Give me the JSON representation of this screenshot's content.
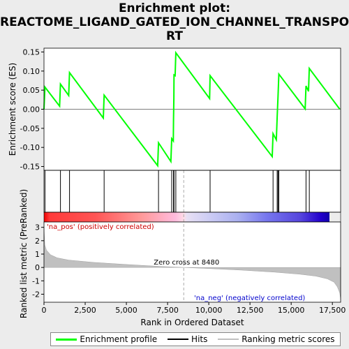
{
  "title_lines": [
    "Enrichment plot:",
    "REACTOME_LIGAND_GATED_ION_CHANNEL_TRANSPO",
    "RT"
  ],
  "colors": {
    "enrichment_line": "#00ff00",
    "hits": "#000000",
    "metric_fill": "#c0c0c0",
    "zero_cross_line": "#c0c0c0",
    "pos_label": "#cc0000",
    "neg_label": "#0000cc"
  },
  "legend": {
    "enrichment_profile": "Enrichment profile",
    "hits": "Hits",
    "ranking_metric": "Ranking metric scores"
  },
  "chart_data": {
    "type": "line",
    "top_panel": {
      "ylabel": "Enrichment score (ES)",
      "ylim": [
        -0.16,
        0.16
      ],
      "yticks": [
        -0.15,
        -0.1,
        -0.05,
        0.0,
        0.05,
        0.1,
        0.15
      ],
      "ytick_labels": [
        "-0.15",
        "-0.10",
        "-0.05",
        "0.00",
        "0.05",
        "0.10",
        "0.15"
      ],
      "series_x": [
        0,
        60,
        950,
        1000,
        1500,
        1550,
        3600,
        3650,
        6900,
        6950,
        7700,
        7750,
        7850,
        7860,
        7880,
        7890,
        7960,
        8000,
        10050,
        10080,
        13850,
        13900,
        14100,
        14150,
        14200,
        14250,
        15850,
        15900,
        16050,
        16100,
        17950
      ],
      "series_y": [
        0.0,
        0.058,
        0.008,
        0.066,
        0.036,
        0.096,
        -0.023,
        0.037,
        -0.148,
        -0.088,
        -0.137,
        -0.077,
        -0.083,
        -0.027,
        0.03,
        0.09,
        0.088,
        0.148,
        0.028,
        0.088,
        -0.124,
        -0.064,
        -0.08,
        -0.02,
        0.033,
        0.092,
        0.001,
        0.061,
        0.047,
        0.107,
        0.0
      ]
    },
    "hits_panel": {
      "hits": [
        60,
        1000,
        1550,
        3650,
        6950,
        7750,
        7860,
        7890,
        8000,
        10080,
        13900,
        14150,
        14200,
        14250,
        15900,
        16100
      ]
    },
    "bottom_panel": {
      "ylabel": "Ranked list metric (PreRanked)",
      "xlabel": "Rank in Ordered Dataset",
      "ylim": [
        -2.6,
        3.4
      ],
      "yticks": [
        -2,
        -1,
        0,
        1,
        2,
        3
      ],
      "ytick_labels": [
        "-2",
        "-1",
        "0",
        "1",
        "2",
        "3"
      ],
      "metric_x": [
        0,
        50,
        150,
        400,
        800,
        1500,
        3000,
        5000,
        7000,
        8480,
        10000,
        12000,
        14000,
        15500,
        16500,
        17200,
        17600,
        17800,
        17950,
        18000
      ],
      "metric_y": [
        3.0,
        1.7,
        1.3,
        0.95,
        0.72,
        0.55,
        0.38,
        0.22,
        0.08,
        0.0,
        -0.08,
        -0.2,
        -0.35,
        -0.5,
        -0.65,
        -0.85,
        -1.1,
        -1.45,
        -1.9,
        -2.4
      ],
      "zero_cross_label": "Zero cross at 8480",
      "zero_cross_x": 8480,
      "pos_label": "'na_pos' (positively correlated)",
      "neg_label": "'na_neg' (negatively correlated)"
    },
    "xlim": [
      0,
      18000
    ],
    "xticks": [
      0,
      2500,
      5000,
      7500,
      10000,
      12500,
      15000,
      17500
    ],
    "xtick_labels": [
      "0",
      "2,500",
      "5,000",
      "7,500",
      "10,000",
      "12,500",
      "15,000",
      "17,500"
    ]
  }
}
